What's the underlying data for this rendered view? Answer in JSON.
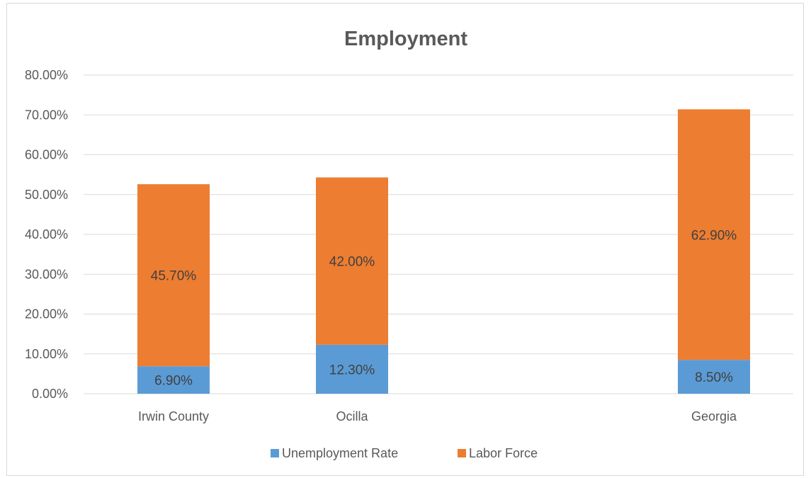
{
  "chart_data": {
    "type": "bar",
    "stacked": true,
    "title": "Employment",
    "categories": [
      "Irwin County",
      "Ocilla",
      "Georgia"
    ],
    "series": [
      {
        "name": "Unemployment Rate",
        "values": [
          6.9,
          12.3,
          8.5
        ],
        "labels": [
          "6.90%",
          "12.30%",
          "8.50%"
        ],
        "color": "#5b9bd5"
      },
      {
        "name": "Labor Force",
        "values": [
          45.7,
          42.0,
          62.9
        ],
        "labels": [
          "45.70%",
          "42.00%",
          "62.90%"
        ],
        "color": "#ed7d31"
      }
    ],
    "ylim": [
      0,
      80
    ],
    "yticks": [
      "0.00%",
      "10.00%",
      "20.00%",
      "30.00%",
      "40.00%",
      "50.00%",
      "60.00%",
      "70.00%",
      "80.00%"
    ],
    "grid": true,
    "legend_position": "bottom"
  },
  "colors": {
    "gridline": "#d9d9d9",
    "text": "#595959"
  }
}
